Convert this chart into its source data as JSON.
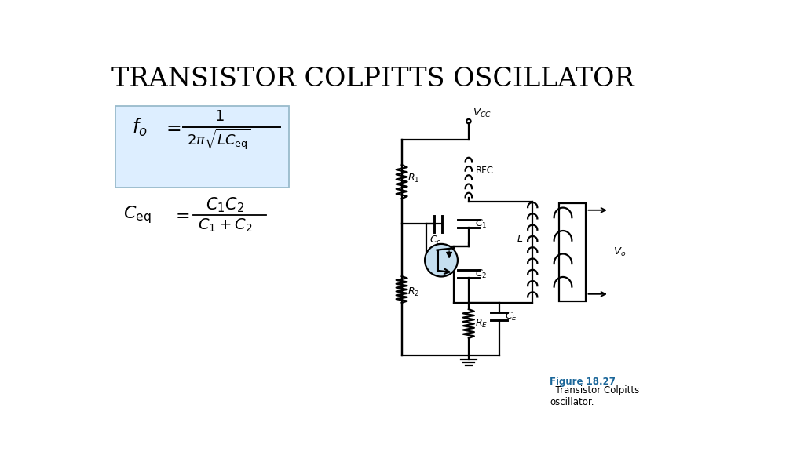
{
  "title": "TRANSISTOR COLPITTS OSCILLATOR",
  "title_fontsize": 24,
  "bg_color": "#ffffff",
  "formula_box_color": "#ddeeff",
  "formula_box_edge": "#99bbcc",
  "fig_caption_color": "#1a6699",
  "fig_caption": "Figure 18.27",
  "fig_caption2": "  Transistor Colpitts\noscillator.",
  "line_color": "#000000",
  "lw": 1.6
}
